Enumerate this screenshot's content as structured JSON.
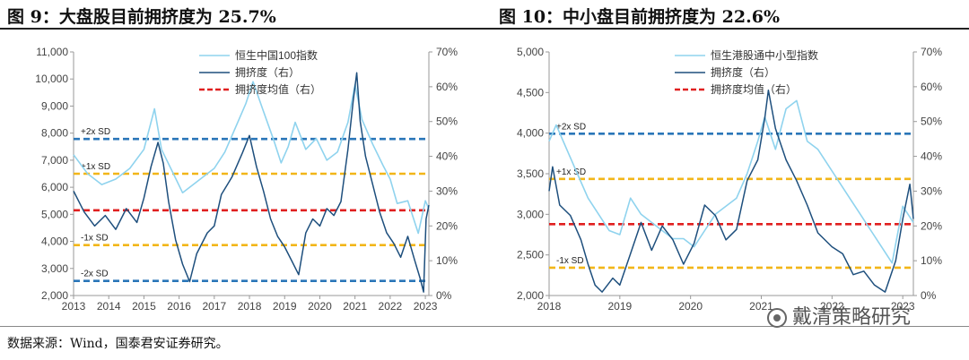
{
  "titles": {
    "fig9": "图  9：大盘股目前拥挤度为 25.7%",
    "fig10": "图  10：中小盘目前拥挤度为 22.6%"
  },
  "source": "数据来源：Wind，国泰君安证券研究。",
  "watermark": "戴清策略研究",
  "colors": {
    "index_line": "#8fd3ee",
    "crowding_line": "#1e4f7d",
    "sd2": "#2a76b8",
    "sd1": "#f2b619",
    "mean": "#e02020"
  },
  "chart_data": [
    {
      "id": "chart9",
      "type": "line",
      "title": "图  9：大盘股目前拥挤度为 25.7%",
      "x_ticks": [
        "2013",
        "2014",
        "2015",
        "2016",
        "2017",
        "2018",
        "2019",
        "2020",
        "2021",
        "2022",
        "2023"
      ],
      "x_range": [
        2013,
        2023.1
      ],
      "y_left": {
        "range": [
          2000,
          11000
        ],
        "ticks": [
          "2,000",
          "3,000",
          "4,000",
          "5,000",
          "6,000",
          "7,000",
          "8,000",
          "9,000",
          "10,000",
          "11,000"
        ]
      },
      "y_right": {
        "range": [
          0,
          70
        ],
        "ticks": [
          "0%",
          "10%",
          "20%",
          "30%",
          "40%",
          "50%",
          "60%",
          "70%"
        ]
      },
      "legend": [
        "恒生中国100指数",
        "拥挤度（右）",
        "拥挤度均值（右）"
      ],
      "hlines": [
        {
          "label": "+2x SD",
          "value": 45,
          "style": "sd2"
        },
        {
          "label": "+1x SD",
          "value": 35,
          "style": "sd1"
        },
        {
          "label": "拥挤度均值（右）",
          "value": 24.5,
          "style": "mean"
        },
        {
          "label": "-1x SD",
          "value": 14.5,
          "style": "sd1"
        },
        {
          "label": "-2x SD",
          "value": 4.2,
          "style": "sd2"
        }
      ],
      "series": [
        {
          "name": "恒生中国100指数",
          "axis": "left",
          "style": "index_line",
          "x": [
            2013,
            2013.4,
            2013.8,
            2014.2,
            2014.6,
            2015,
            2015.3,
            2015.5,
            2015.8,
            2016.1,
            2016.4,
            2016.8,
            2017,
            2017.3,
            2017.6,
            2017.9,
            2018.1,
            2018.4,
            2018.7,
            2018.9,
            2019.1,
            2019.3,
            2019.6,
            2019.9,
            2020.2,
            2020.5,
            2020.8,
            2021,
            2021.2,
            2021.5,
            2021.8,
            2022,
            2022.2,
            2022.5,
            2022.8,
            2023,
            2023.1
          ],
          "y": [
            7200,
            6500,
            6100,
            6300,
            6700,
            7400,
            8900,
            7400,
            6600,
            5800,
            6100,
            6500,
            6700,
            7300,
            8200,
            9100,
            9900,
            8800,
            7700,
            6900,
            7500,
            8400,
            7400,
            7800,
            7000,
            7300,
            8400,
            9800,
            8500,
            7600,
            6800,
            6300,
            5400,
            5500,
            4300,
            5500,
            5200
          ]
        },
        {
          "name": "拥挤度（右）",
          "axis": "right",
          "style": "crowding_line",
          "x": [
            2013,
            2013.3,
            2013.6,
            2013.9,
            2014.2,
            2014.5,
            2014.8,
            2015,
            2015.2,
            2015.4,
            2015.55,
            2015.7,
            2015.9,
            2016.1,
            2016.3,
            2016.5,
            2016.8,
            2017,
            2017.2,
            2017.5,
            2017.8,
            2018,
            2018.2,
            2018.4,
            2018.6,
            2018.8,
            2019,
            2019.2,
            2019.4,
            2019.6,
            2019.8,
            2020,
            2020.2,
            2020.4,
            2020.6,
            2020.8,
            2020.95,
            2021.05,
            2021.15,
            2021.3,
            2021.5,
            2021.7,
            2021.9,
            2022.1,
            2022.3,
            2022.5,
            2022.7,
            2022.85,
            2022.95,
            2023.02,
            2023.1
          ],
          "y": [
            30,
            24,
            20,
            23,
            19,
            25,
            21,
            28,
            37,
            44,
            38,
            27,
            16,
            9,
            4,
            12,
            18,
            20,
            29,
            34,
            41,
            46,
            37,
            30,
            22,
            17,
            14,
            10,
            6,
            18,
            22,
            20,
            25,
            23,
            27,
            42,
            56,
            64,
            50,
            40,
            32,
            24,
            18,
            15,
            11,
            17,
            10,
            5,
            1,
            22,
            26
          ]
        },
        {
          "name": "拥挤度均值（右）",
          "axis": "right",
          "style": "mean",
          "x": [
            2013,
            2023.1
          ],
          "y": [
            24.5,
            24.5
          ]
        }
      ]
    },
    {
      "id": "chart10",
      "type": "line",
      "title": "图  10：中小盘目前拥挤度为 22.6%",
      "x_ticks": [
        "2018",
        "2019",
        "2020",
        "2021",
        "2022",
        "2023"
      ],
      "x_range": [
        2018,
        2023.15
      ],
      "y_left": {
        "range": [
          2000,
          5000
        ],
        "ticks": [
          "2,000",
          "2,500",
          "3,000",
          "3,500",
          "4,000",
          "4,500",
          "5,000"
        ]
      },
      "y_right": {
        "range": [
          0,
          70
        ],
        "ticks": [
          "0%",
          "10%",
          "20%",
          "30%",
          "40%",
          "50%",
          "60%",
          "70%"
        ]
      },
      "legend": [
        "恒生港股通中小型指数",
        "拥挤度（右）",
        "拥挤度均值（右）"
      ],
      "hlines": [
        {
          "label": "+2x SD",
          "value": 46.5,
          "style": "sd2"
        },
        {
          "label": "+1x SD",
          "value": 33.5,
          "style": "sd1"
        },
        {
          "label": "拥挤度均值（右）",
          "value": 20.5,
          "style": "mean"
        },
        {
          "label": "-1x SD",
          "value": 8,
          "style": "sd1"
        }
      ],
      "series": [
        {
          "name": "恒生港股通中小型指数",
          "axis": "left",
          "style": "index_line",
          "x": [
            2018,
            2018.1,
            2018.25,
            2018.4,
            2018.55,
            2018.7,
            2018.85,
            2019,
            2019.15,
            2019.3,
            2019.45,
            2019.6,
            2019.75,
            2019.9,
            2020.05,
            2020.2,
            2020.35,
            2020.5,
            2020.65,
            2020.8,
            2020.95,
            2021.05,
            2021.2,
            2021.35,
            2021.5,
            2021.65,
            2021.8,
            2021.95,
            2022.1,
            2022.25,
            2022.4,
            2022.55,
            2022.7,
            2022.85,
            2023,
            2023.15
          ],
          "y": [
            3900,
            4100,
            3800,
            3500,
            3200,
            3000,
            2800,
            2750,
            3200,
            3000,
            2900,
            2800,
            2700,
            2700,
            2600,
            2800,
            3000,
            3100,
            3200,
            3500,
            3900,
            4200,
            3800,
            4300,
            4400,
            3900,
            3800,
            3600,
            3400,
            3200,
            3000,
            2800,
            2600,
            2400,
            3100,
            2900
          ]
        },
        {
          "name": "拥挤度（右）",
          "axis": "right",
          "style": "crowding_line",
          "x": [
            2018,
            2018.05,
            2018.15,
            2018.3,
            2018.45,
            2018.55,
            2018.65,
            2018.75,
            2018.9,
            2019,
            2019.15,
            2019.3,
            2019.45,
            2019.6,
            2019.75,
            2019.9,
            2020.05,
            2020.2,
            2020.35,
            2020.5,
            2020.65,
            2020.8,
            2020.95,
            2021.05,
            2021.1,
            2021.2,
            2021.35,
            2021.5,
            2021.65,
            2021.8,
            2022,
            2022.15,
            2022.3,
            2022.45,
            2022.6,
            2022.75,
            2022.9,
            2023.0,
            2023.1,
            2023.15
          ],
          "y": [
            30,
            37,
            26,
            23,
            16,
            9,
            3,
            1,
            5,
            3,
            12,
            21,
            13,
            20,
            16,
            9,
            15,
            26,
            23,
            16,
            19,
            33,
            39,
            51,
            59,
            48,
            39,
            33,
            26,
            18,
            14,
            12,
            6,
            7,
            3,
            1,
            10,
            22,
            32,
            22
          ]
        },
        {
          "name": "拥挤度均值（右）",
          "axis": "right",
          "style": "mean",
          "x": [
            2018,
            2023.15
          ],
          "y": [
            20.5,
            20.5
          ]
        }
      ]
    }
  ]
}
